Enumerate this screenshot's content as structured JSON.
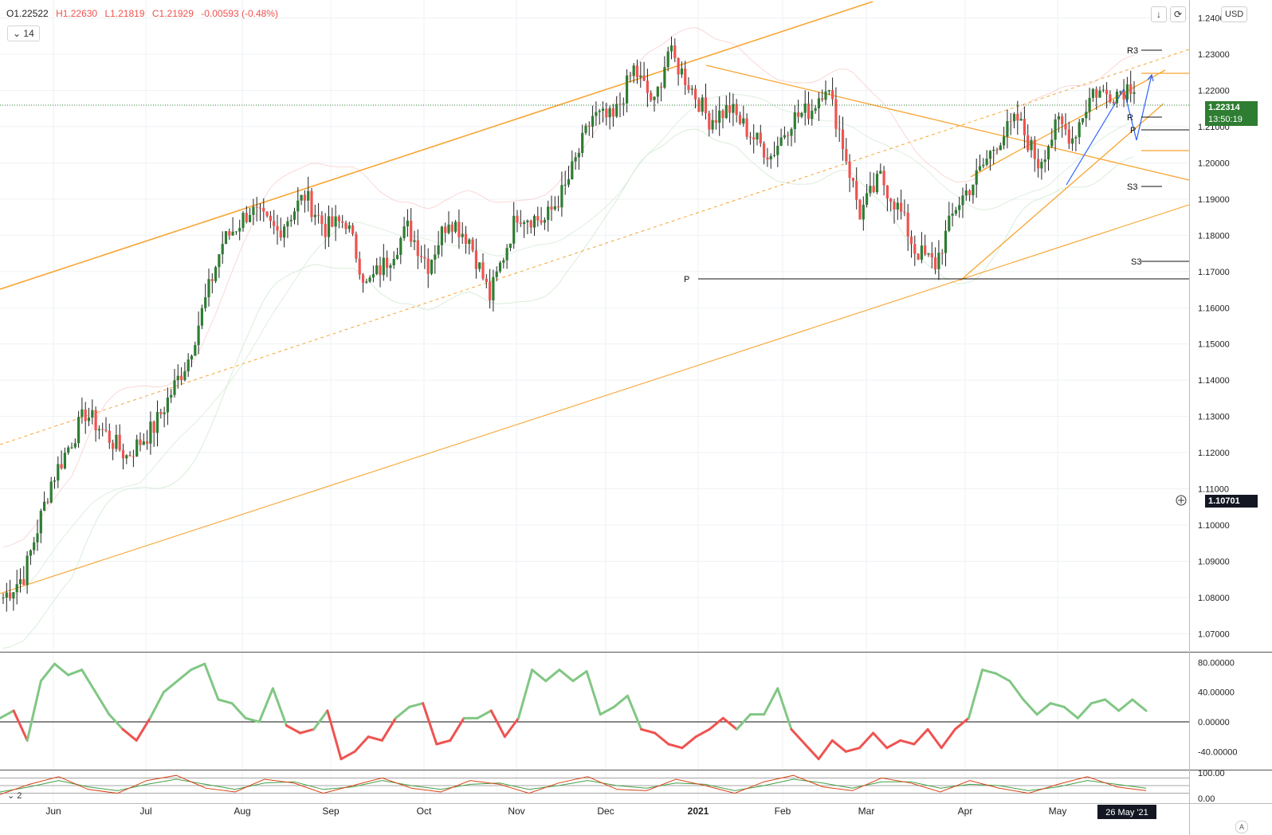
{
  "ohlc": {
    "open": "O1.22522",
    "high": "H1.22630",
    "low": "L1.21819",
    "close": "C1.21929",
    "change": "-0.00593 (-0.48%)"
  },
  "toolbar": {
    "period_value": "14",
    "currency_label": "USD",
    "download_icon": "arrow-down-icon",
    "refresh_icon": "refresh-icon",
    "chevron_icon": "chevron-down-icon"
  },
  "price_axis": {
    "ticks": [
      "1.24000",
      "1.23000",
      "1.22000",
      "1.21000",
      "1.20000",
      "1.19000",
      "1.18000",
      "1.17000",
      "1.16000",
      "1.15000",
      "1.14000",
      "1.13000",
      "1.12000",
      "1.11000",
      "1.10000",
      "1.09000",
      "1.08000",
      "1.07000"
    ],
    "last_price": "1.22314",
    "countdown": "13:50:19",
    "crosshair_price": "1.10701"
  },
  "oscillator_axis": {
    "ticks": [
      "80.00000",
      "40.00000",
      "0.00000",
      "-40.00000"
    ]
  },
  "stoch_axis": {
    "ticks": [
      "100.00",
      "0.00"
    ]
  },
  "stoch_label": "2",
  "time_axis": {
    "labels": [
      "Jun",
      "Jul",
      "Aug",
      "Sep",
      "Oct",
      "Nov",
      "Dec",
      "2021",
      "Feb",
      "Mar",
      "Apr",
      "May"
    ],
    "cursor_date": "26 May '21"
  },
  "pivots": {
    "r3_label": "R3",
    "r1_label": "R",
    "p_label": "P",
    "s3_label": "S3",
    "s3b_label": "S3",
    "p_old_label": "P"
  },
  "colors": {
    "up": "#2e7d32",
    "down": "#ef5350",
    "trend": "#f7a531",
    "cci_up": "#81c784",
    "cci_down": "#ef5350",
    "stoch_red": "#d84315",
    "stoch_green": "#43a047"
  },
  "chart_data": {
    "type": "candlestick",
    "symbol_timeframe": "1D",
    "ylim": [
      1.065,
      1.245
    ],
    "months": [
      "Jun",
      "Jul",
      "Aug",
      "Sep",
      "Oct",
      "Nov",
      "Dec",
      "2021",
      "Feb",
      "Mar",
      "Apr",
      "May"
    ],
    "anchors": [
      [
        0,
        1.08
      ],
      [
        6,
        1.086
      ],
      [
        14,
        1.112
      ],
      [
        24,
        1.131
      ],
      [
        30,
        1.125
      ],
      [
        36,
        1.119
      ],
      [
        44,
        1.127
      ],
      [
        54,
        1.146
      ],
      [
        64,
        1.178
      ],
      [
        72,
        1.187
      ],
      [
        80,
        1.181
      ],
      [
        88,
        1.191
      ],
      [
        94,
        1.182
      ],
      [
        100,
        1.184
      ],
      [
        106,
        1.166
      ],
      [
        112,
        1.173
      ],
      [
        118,
        1.182
      ],
      [
        124,
        1.172
      ],
      [
        130,
        1.185
      ],
      [
        136,
        1.179
      ],
      [
        142,
        1.163
      ],
      [
        150,
        1.186
      ],
      [
        158,
        1.184
      ],
      [
        164,
        1.193
      ],
      [
        172,
        1.213
      ],
      [
        178,
        1.212
      ],
      [
        184,
        1.226
      ],
      [
        190,
        1.216
      ],
      [
        194,
        1.231
      ],
      [
        200,
        1.222
      ],
      [
        206,
        1.212
      ],
      [
        212,
        1.215
      ],
      [
        218,
        1.208
      ],
      [
        224,
        1.202
      ],
      [
        230,
        1.212
      ],
      [
        236,
        1.215
      ],
      [
        240,
        1.222
      ],
      [
        244,
        1.209
      ],
      [
        250,
        1.186
      ],
      [
        256,
        1.196
      ],
      [
        262,
        1.186
      ],
      [
        266,
        1.176
      ],
      [
        272,
        1.172
      ],
      [
        278,
        1.188
      ],
      [
        284,
        1.196
      ],
      [
        290,
        1.206
      ],
      [
        296,
        1.212
      ],
      [
        302,
        1.2
      ],
      [
        308,
        1.211
      ],
      [
        312,
        1.207
      ],
      [
        318,
        1.22
      ],
      [
        322,
        1.219
      ],
      [
        326,
        1.22
      ],
      [
        330,
        1.222
      ]
    ],
    "cci": {
      "values": [
        5,
        15,
        -25,
        55,
        78,
        63,
        70,
        40,
        10,
        -10,
        -25,
        5,
        40,
        55,
        70,
        78,
        30,
        25,
        5,
        0,
        45,
        -5,
        -15,
        -10,
        15,
        -50,
        -40,
        -20,
        -25,
        5,
        20,
        25,
        -30,
        -25,
        5,
        5,
        15,
        -20,
        5,
        70,
        55,
        70,
        55,
        68,
        10,
        20,
        35,
        -10,
        -15,
        -30,
        -35,
        -20,
        -10,
        5,
        -10,
        10,
        10,
        45,
        -10,
        -30,
        -50,
        -25,
        -40,
        -35,
        -15,
        -35,
        -25,
        -30,
        -10,
        -35,
        -10,
        5,
        70,
        65,
        55,
        30,
        10,
        25,
        20,
        5,
        25,
        30,
        15,
        30,
        15
      ],
      "ylim": [
        -60,
        90
      ]
    },
    "stoch": {
      "k": [
        15,
        55,
        85,
        35,
        20,
        70,
        90,
        40,
        25,
        75,
        60,
        20,
        50,
        80,
        40,
        25,
        70,
        55,
        20,
        60,
        85,
        35,
        30,
        75,
        50,
        20,
        65,
        90,
        45,
        30,
        80,
        60,
        25,
        70,
        40,
        20,
        55,
        85,
        45,
        30
      ],
      "d": [
        25,
        45,
        70,
        45,
        30,
        55,
        75,
        55,
        35,
        60,
        65,
        35,
        45,
        70,
        50,
        35,
        55,
        60,
        35,
        50,
        70,
        50,
        40,
        60,
        55,
        30,
        50,
        75,
        60,
        40,
        65,
        65,
        40,
        55,
        50,
        30,
        45,
        70,
        55,
        40
      ],
      "ylim": [
        0,
        100
      ]
    }
  }
}
